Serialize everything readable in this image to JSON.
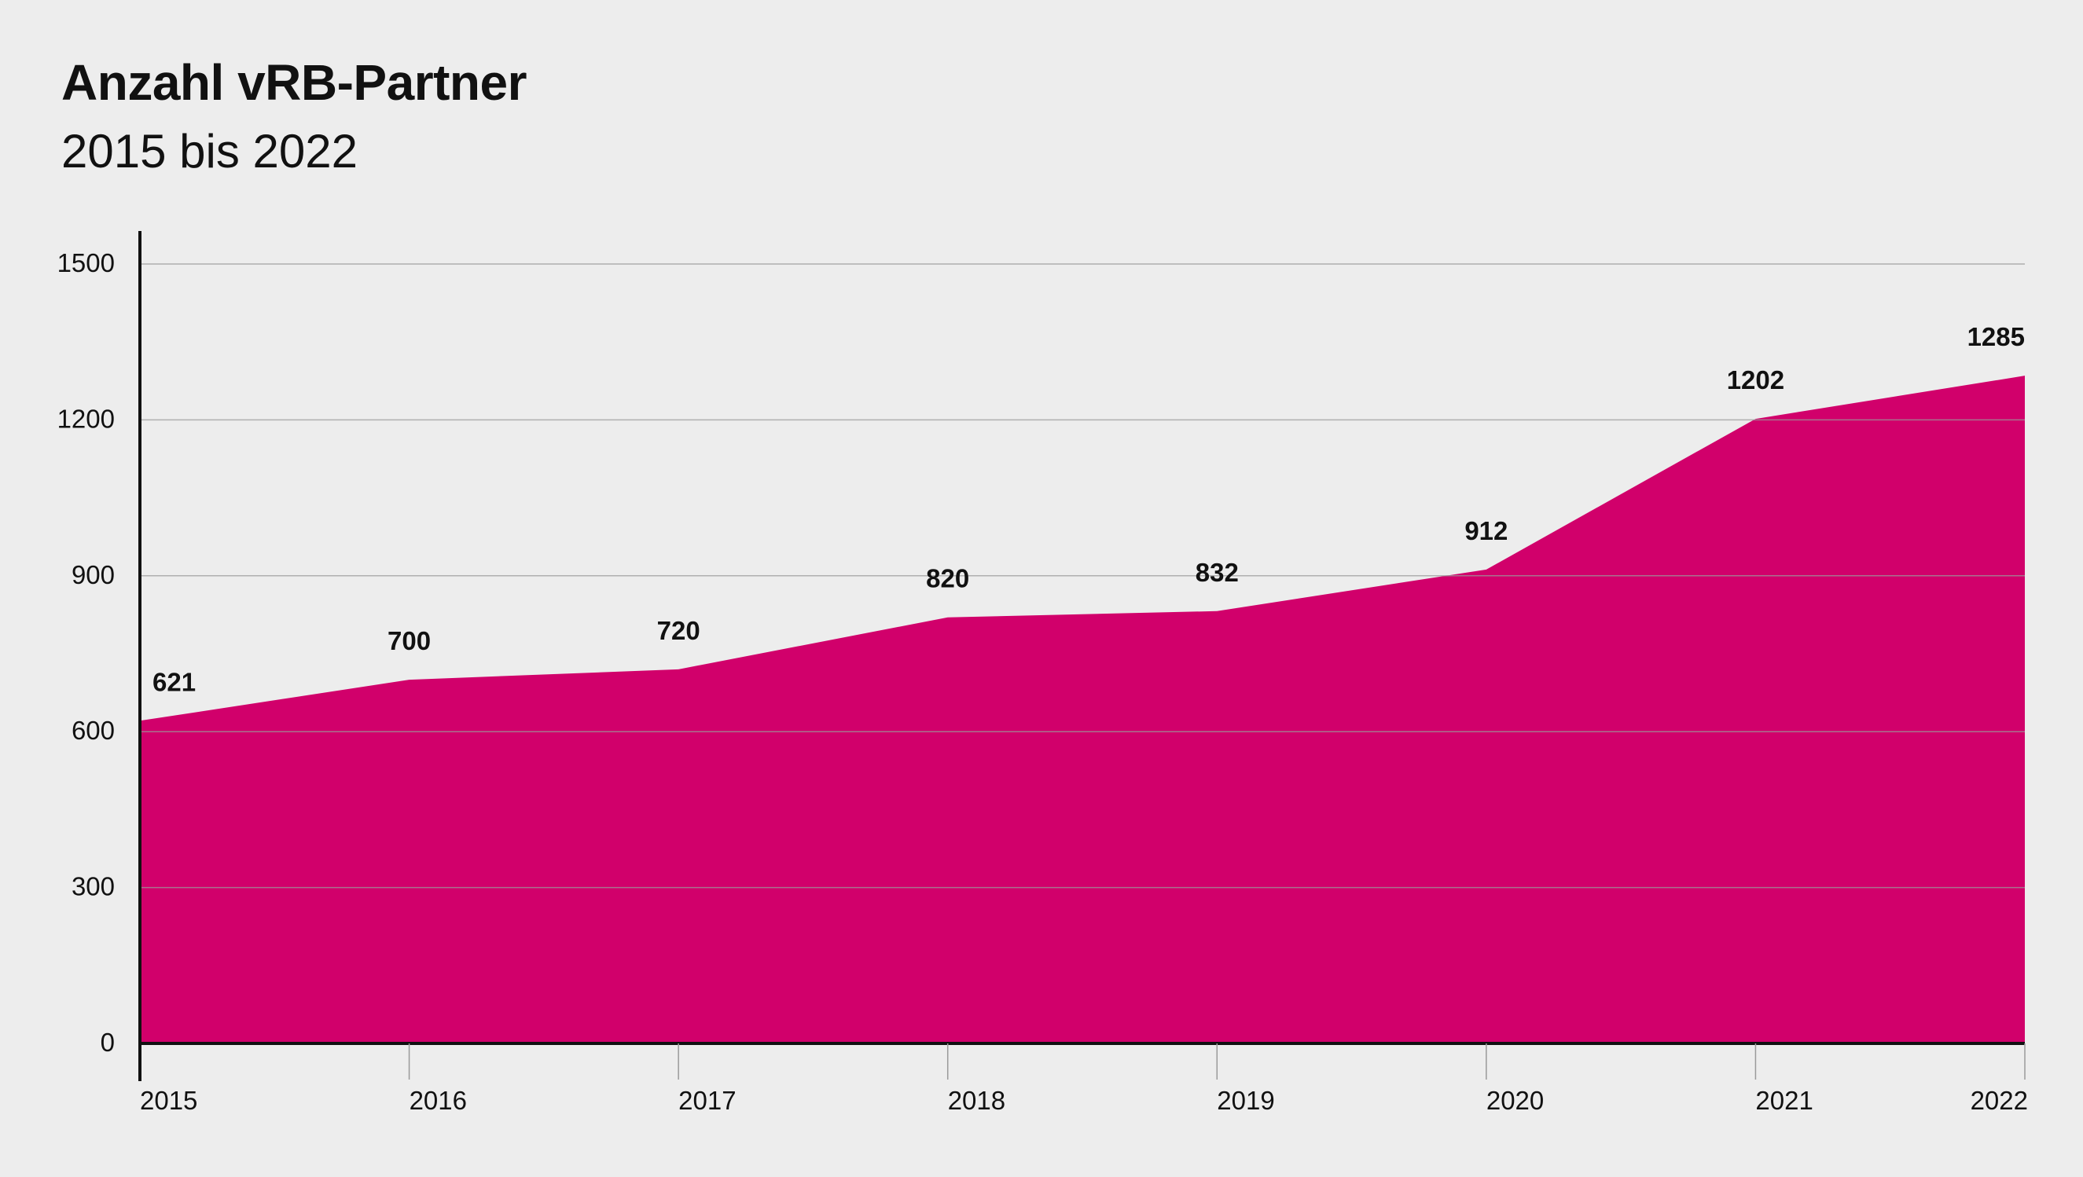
{
  "chart_data": {
    "type": "area",
    "title": "Anzahl vRB-Partner",
    "subtitle": "2015 bis 2022",
    "xlabel": "",
    "ylabel": "",
    "x": [
      "2015",
      "2016",
      "2017",
      "2018",
      "2019",
      "2020",
      "2021",
      "2022"
    ],
    "values": [
      621,
      700,
      720,
      820,
      832,
      912,
      1202,
      1285
    ],
    "data_labels": [
      "621",
      "700",
      "720",
      "820",
      "832",
      "912",
      "1202",
      "1285"
    ],
    "yticks": [
      0,
      300,
      600,
      900,
      1200,
      1500
    ],
    "ytick_labels": [
      "0",
      "300",
      "600",
      "900",
      "1200",
      "1500"
    ],
    "ylim": [
      0,
      1500
    ],
    "grid": true,
    "legend": "none",
    "colors": {
      "area": "#d1006b",
      "background": "#ededed",
      "gridline": "#9a9a9a",
      "axis": "#111111"
    }
  }
}
